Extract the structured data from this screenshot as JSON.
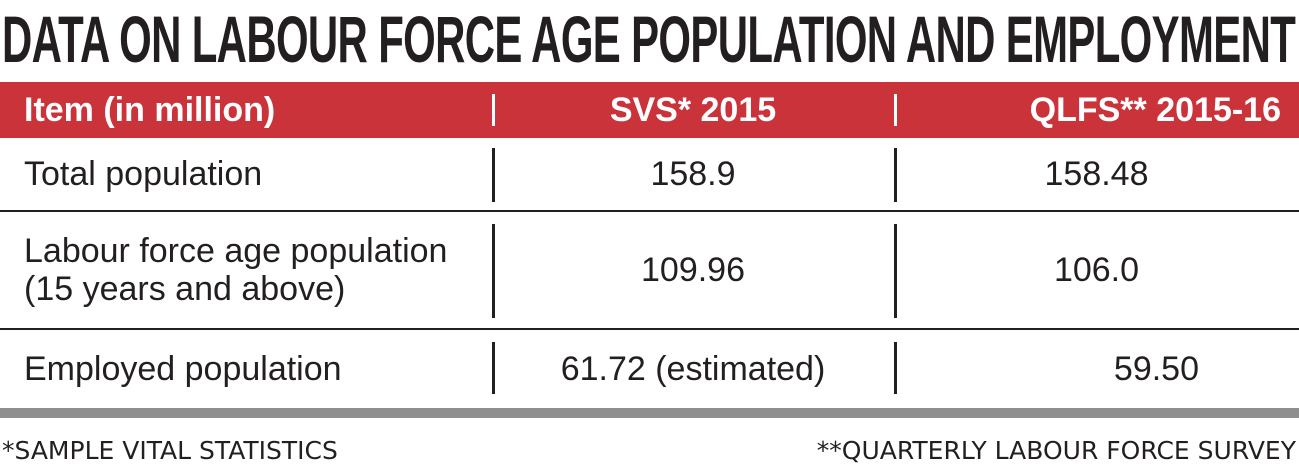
{
  "title": "DATA ON LABOUR FORCE AGE POPULATION AND EMPLOYMENT",
  "colors": {
    "header_bg": "#cb333b",
    "header_text": "#ffffff",
    "text": "#231f20",
    "bottom_bar": "#8e8e8e"
  },
  "table": {
    "headers": [
      "Item (in million)",
      "SVS* 2015",
      "QLFS** 2015-16"
    ],
    "rows": [
      {
        "item": "Total population",
        "svs": "158.9",
        "qlfs": "158.48"
      },
      {
        "item_line1": "Labour force age population",
        "item_line2": "(15 years and above)",
        "svs": "109.96",
        "qlfs": "106.0"
      },
      {
        "item": "Employed population",
        "svs": "61.72 (estimated)",
        "qlfs": "59.50"
      }
    ]
  },
  "footnotes": {
    "left": "*SAMPLE VITAL STATISTICS",
    "right": "**QUARTERLY LABOUR FORCE SURVEY"
  }
}
